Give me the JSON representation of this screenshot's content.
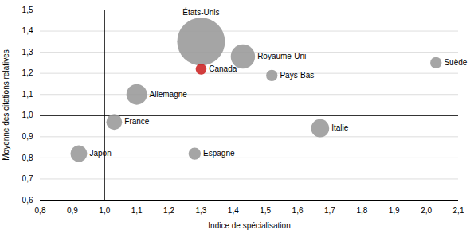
{
  "chart_data": {
    "type": "scatter",
    "xlabel": "Indice de spécialisation",
    "ylabel": "Moyenne des citations relatives",
    "labels": [
      "États-Unis",
      "Canada",
      "Royaume-Uni",
      "Pays-Bas",
      "Suède",
      "Allemagne",
      "France",
      "Italie",
      "Espagne",
      "Japon"
    ],
    "x": [
      1.3,
      1.3,
      1.43,
      1.52,
      2.03,
      1.1,
      1.03,
      1.67,
      1.28,
      0.92
    ],
    "y": [
      1.35,
      1.22,
      1.28,
      1.19,
      1.25,
      1.1,
      0.97,
      0.94,
      0.82,
      0.82
    ],
    "sizes": [
      3500,
      180,
      900,
      200,
      200,
      650,
      380,
      500,
      230,
      430
    ],
    "colors": [
      "#999999",
      "#cc2222",
      "#999999",
      "#999999",
      "#999999",
      "#999999",
      "#999999",
      "#999999",
      "#999999",
      "#999999"
    ],
    "reference_lines": {
      "x": 1.0,
      "y": 1.0
    },
    "xlim": [
      0.8,
      2.1
    ],
    "ylim": [
      0.6,
      1.5
    ],
    "xticks": [
      {
        "value": 0.8,
        "label": "0,8"
      },
      {
        "value": 0.9,
        "label": "0,9"
      },
      {
        "value": 1.0,
        "label": "1,0"
      },
      {
        "value": 1.1,
        "label": "1,1"
      },
      {
        "value": 1.2,
        "label": "1,2"
      },
      {
        "value": 1.3,
        "label": "1,3"
      },
      {
        "value": 1.4,
        "label": "1,4"
      },
      {
        "value": 1.5,
        "label": "1,5"
      },
      {
        "value": 1.6,
        "label": "1,6"
      },
      {
        "value": 1.7,
        "label": "1,7"
      },
      {
        "value": 1.8,
        "label": "1,8"
      },
      {
        "value": 1.9,
        "label": "1,9"
      },
      {
        "value": 2.0,
        "label": "2,0"
      },
      {
        "value": 2.1,
        "label": "2,1"
      }
    ],
    "yticks": [
      {
        "value": 0.6,
        "label": "0,6"
      },
      {
        "value": 0.7,
        "label": "0,7"
      },
      {
        "value": 0.8,
        "label": "0,8"
      },
      {
        "value": 0.9,
        "label": "0,9"
      },
      {
        "value": 1.0,
        "label": "1,0"
      },
      {
        "value": 1.1,
        "label": "1,1"
      },
      {
        "value": 1.2,
        "label": "1,2"
      },
      {
        "value": 1.3,
        "label": "1,3"
      },
      {
        "value": 1.4,
        "label": "1,4"
      },
      {
        "value": 1.5,
        "label": "1,5"
      }
    ],
    "grid": "y"
  }
}
